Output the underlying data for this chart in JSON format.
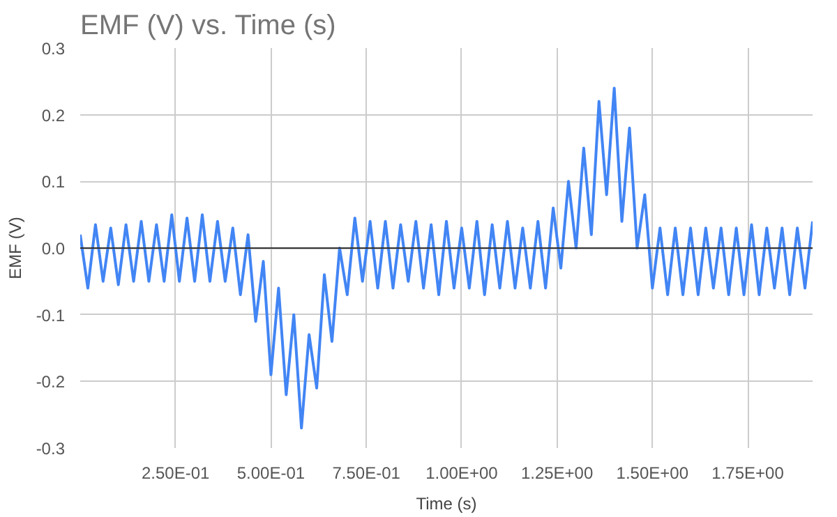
{
  "chart_data": {
    "type": "line",
    "title": "EMF (V) vs. Time (s)",
    "xlabel": "Time (s)",
    "ylabel": "EMF (V)",
    "x": [
      0.0,
      0.02,
      0.04,
      0.06,
      0.08,
      0.1,
      0.12,
      0.14,
      0.16,
      0.18,
      0.2,
      0.22,
      0.24,
      0.26,
      0.28,
      0.3,
      0.32,
      0.34,
      0.36,
      0.38,
      0.4,
      0.42,
      0.44,
      0.46,
      0.48,
      0.5,
      0.52,
      0.54,
      0.56,
      0.58,
      0.6,
      0.62,
      0.64,
      0.66,
      0.68,
      0.7,
      0.72,
      0.74,
      0.76,
      0.78,
      0.8,
      0.82,
      0.84,
      0.86,
      0.88,
      0.9,
      0.92,
      0.94,
      0.96,
      0.98,
      1.0,
      1.02,
      1.04,
      1.06,
      1.08,
      1.1,
      1.12,
      1.14,
      1.16,
      1.18,
      1.2,
      1.22,
      1.24,
      1.26,
      1.28,
      1.3,
      1.32,
      1.34,
      1.36,
      1.38,
      1.4,
      1.42,
      1.44,
      1.46,
      1.48,
      1.5,
      1.52,
      1.54,
      1.56,
      1.58,
      1.6,
      1.62,
      1.64,
      1.66,
      1.68,
      1.7,
      1.72,
      1.74,
      1.76,
      1.78,
      1.8,
      1.82,
      1.84,
      1.86,
      1.88,
      1.9,
      1.92
    ],
    "series": [
      {
        "color": "#4285f4",
        "values": [
          0.02,
          -0.06,
          0.035,
          -0.05,
          0.03,
          -0.055,
          0.035,
          -0.05,
          0.04,
          -0.05,
          0.035,
          -0.05,
          0.05,
          -0.05,
          0.045,
          -0.05,
          0.05,
          -0.05,
          0.04,
          -0.05,
          0.03,
          -0.07,
          0.02,
          -0.11,
          -0.02,
          -0.19,
          -0.06,
          -0.22,
          -0.1,
          -0.27,
          -0.13,
          -0.21,
          -0.04,
          -0.14,
          0.0,
          -0.07,
          0.045,
          -0.05,
          0.04,
          -0.06,
          0.04,
          -0.06,
          0.035,
          -0.05,
          0.04,
          -0.06,
          0.035,
          -0.07,
          0.04,
          -0.06,
          0.03,
          -0.06,
          0.04,
          -0.07,
          0.035,
          -0.06,
          0.04,
          -0.06,
          0.03,
          -0.06,
          0.04,
          -0.06,
          0.06,
          -0.03,
          0.1,
          0.0,
          0.15,
          0.02,
          0.22,
          0.08,
          0.24,
          0.04,
          0.18,
          0.0,
          0.08,
          -0.06,
          0.03,
          -0.07,
          0.03,
          -0.07,
          0.03,
          -0.07,
          0.03,
          -0.06,
          0.03,
          -0.07,
          0.03,
          -0.07,
          0.035,
          -0.07,
          0.03,
          -0.06,
          0.03,
          -0.07,
          0.03,
          -0.06,
          0.04
        ]
      }
    ],
    "xlim": [
      0,
      1.92
    ],
    "ylim": [
      -0.3,
      0.3
    ],
    "xticks": [
      {
        "value": 0.25,
        "label": "2.50E-01"
      },
      {
        "value": 0.5,
        "label": "5.00E-01"
      },
      {
        "value": 0.75,
        "label": "7.50E-01"
      },
      {
        "value": 1.0,
        "label": "1.00E+00"
      },
      {
        "value": 1.25,
        "label": "1.25E+00"
      },
      {
        "value": 1.5,
        "label": "1.50E+00"
      },
      {
        "value": 1.75,
        "label": "1.75E+00"
      }
    ],
    "yticks": [
      {
        "value": -0.3,
        "label": "-0.3"
      },
      {
        "value": -0.2,
        "label": "-0.2"
      },
      {
        "value": -0.1,
        "label": "-0.1"
      },
      {
        "value": 0,
        "label": "0.0"
      },
      {
        "value": 0.1,
        "label": "0.1"
      },
      {
        "value": 0.2,
        "label": "0.2"
      },
      {
        "value": 0.3,
        "label": "0.3"
      }
    ],
    "ref_lines": [
      {
        "axis": "y",
        "value": 0,
        "color": "#333333"
      }
    ],
    "grid": true,
    "line_style": "solid"
  }
}
